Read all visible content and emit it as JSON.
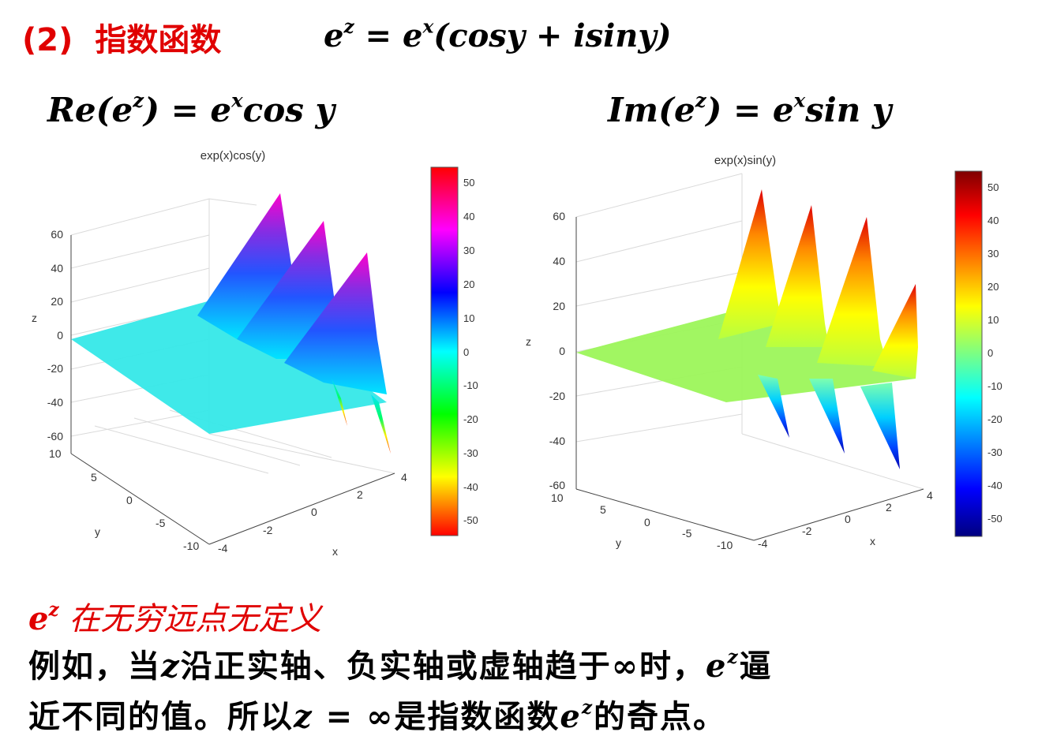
{
  "heading": {
    "number": "(2)",
    "title": "指数函数"
  },
  "formula_main": {
    "lhs": "e",
    "lhs_sup": "z",
    "eq": " = ",
    "rhs": "e",
    "rhs_sup": "x",
    "rest": "(cosy + isiny)"
  },
  "formula_re": {
    "head": "Re(e",
    "sup1": "z",
    "mid": ") = e",
    "sup2": "x",
    "tail": "cos y"
  },
  "formula_im": {
    "head": "Im(e",
    "sup1": "z",
    "mid": ") = e",
    "sup2": "x",
    "tail": "sin y"
  },
  "plot_left": {
    "title": "exp(x)cos(y)",
    "xlabel": "x",
    "ylabel": "y",
    "zlabel": "z",
    "z_ticks": [
      "60",
      "40",
      "20",
      "0",
      "-20",
      "-40",
      "-60"
    ],
    "y_ticks": [
      "10",
      "5",
      "0",
      "-5",
      "-10"
    ],
    "x_ticks": [
      "-4",
      "-2",
      "0",
      "2",
      "4"
    ],
    "colorbar_ticks": [
      "50",
      "40",
      "30",
      "20",
      "10",
      "0",
      "-10",
      "-20",
      "-30",
      "-40",
      "-50"
    ],
    "colormap": "hsv"
  },
  "plot_right": {
    "title": "exp(x)sin(y)",
    "xlabel": "x",
    "ylabel": "y",
    "zlabel": "z",
    "z_ticks": [
      "60",
      "40",
      "20",
      "0",
      "-20",
      "-40",
      "-60"
    ],
    "y_ticks": [
      "10",
      "5",
      "0",
      "-5",
      "-10"
    ],
    "x_ticks": [
      "-4",
      "-2",
      "0",
      "2",
      "4"
    ],
    "colorbar_ticks": [
      "50",
      "40",
      "30",
      "20",
      "10",
      "0",
      "-10",
      "-20",
      "-30",
      "-40",
      "-50"
    ],
    "colormap": "jet"
  },
  "note_red": {
    "e": "e",
    "sup": "z",
    "text": " 在无穷远点无定义"
  },
  "para": {
    "l1a": "例如，当",
    "l1z": "z",
    "l1b": "沿正实轴、负实轴或虚轴趋于∞时，",
    "l1e": "e",
    "l1sup": "z",
    "l1c": "逼",
    "l2a": "近不同的值。所以",
    "l2z": "z",
    "l2b": " = ∞是指数函数",
    "l2e": "e",
    "l2sup": "z",
    "l2c": "的奇点。"
  }
}
